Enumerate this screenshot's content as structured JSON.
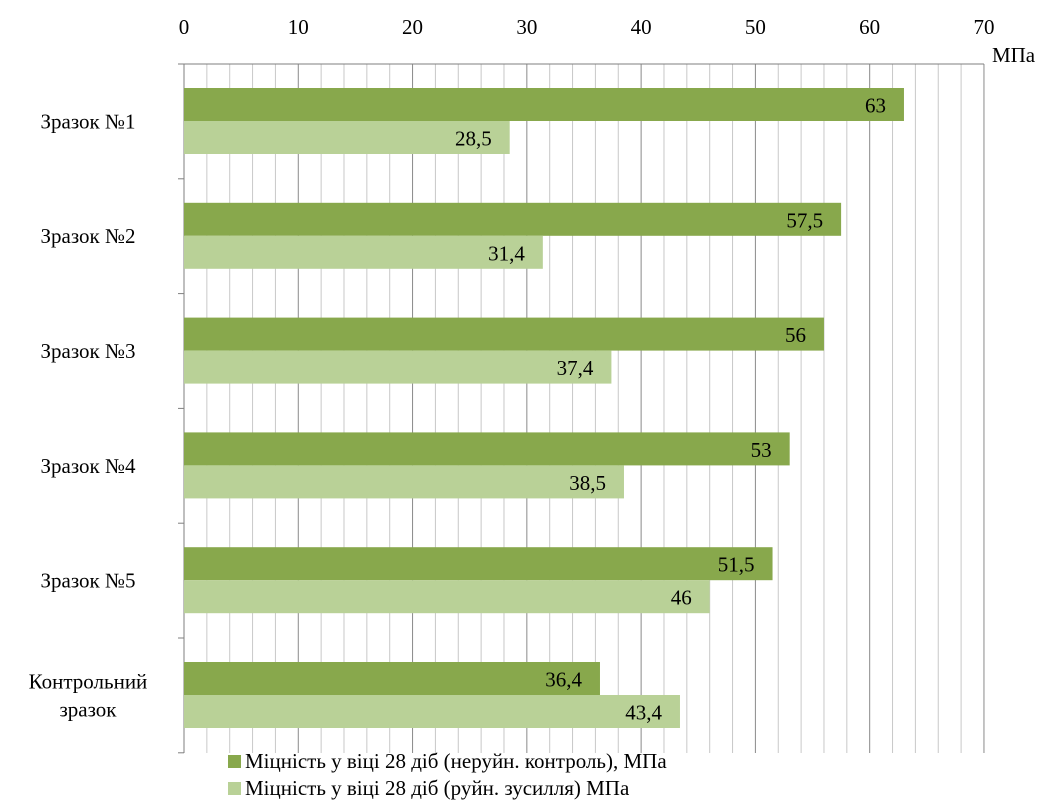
{
  "chart_data": {
    "type": "bar",
    "orientation": "horizontal",
    "unit_label": "МПа",
    "xlim": [
      0,
      70
    ],
    "major_ticks": [
      0,
      10,
      20,
      30,
      40,
      50,
      60,
      70
    ],
    "minor_step": 2,
    "grid": true,
    "legend_position": "bottom",
    "categories": [
      "Зразок №1",
      "Зразок №2",
      "Зразок №3",
      "Зразок №4",
      "Зразок №5",
      [
        "Контрольний",
        "зразок"
      ]
    ],
    "series": [
      {
        "name": "Міцність у віці 28 діб (неруйн. контроль), МПа",
        "values": [
          63,
          57.5,
          56,
          53,
          51.5,
          36.4
        ],
        "labels": [
          "63",
          "57,5",
          "56",
          "53",
          "51,5",
          "36,4"
        ],
        "color": "#88a84c"
      },
      {
        "name": "Міцність у віці 28 діб (руйн. зусилля) МПа",
        "values": [
          28.5,
          31.4,
          37.4,
          38.5,
          46,
          43.4
        ],
        "labels": [
          "28,5",
          "31,4",
          "37,4",
          "38,5",
          "46",
          "43,4"
        ],
        "color": "#b9d197"
      }
    ]
  }
}
